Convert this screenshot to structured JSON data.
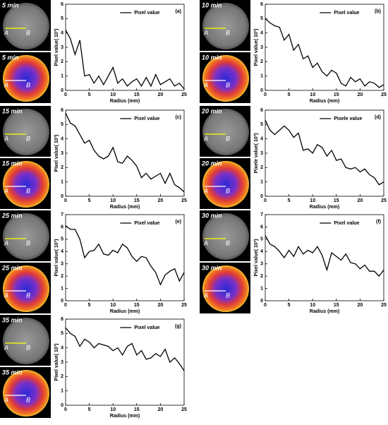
{
  "chart_data": [
    {
      "type": "line",
      "panel_label": "(a)",
      "time_label": "5 min",
      "point_labels": [
        "A",
        "B"
      ],
      "xlabel": "Radius (mm)",
      "ylabel": "Pixel value( 10³)",
      "x": [
        0,
        1,
        2,
        3,
        4,
        5,
        6,
        7,
        8,
        9,
        10,
        11,
        12,
        13,
        14,
        15,
        16,
        17,
        18,
        19,
        20,
        21,
        22,
        23,
        24,
        25
      ],
      "series": [
        {
          "name": "Pixel value",
          "color": "#000000",
          "values": [
            4.2,
            3.6,
            2.5,
            3.5,
            1.0,
            1.1,
            0.5,
            1.0,
            0.4,
            1.0,
            1.6,
            0.5,
            0.8,
            0.3,
            0.6,
            0.8,
            0.3,
            0.9,
            0.3,
            1.1,
            0.4,
            0.6,
            0.8,
            0.3,
            0.5,
            0.1
          ]
        }
      ],
      "xlim": [
        0,
        25
      ],
      "ylim": [
        0,
        6
      ],
      "xticks": [
        0,
        5,
        10,
        15,
        20,
        25
      ],
      "yticks": [
        0,
        1,
        2,
        3,
        4,
        5,
        6
      ]
    },
    {
      "type": "line",
      "panel_label": "(b)",
      "time_label": "10 min",
      "point_labels": [
        "A",
        "B"
      ],
      "xlabel": "Radius (mm)",
      "ylabel": "Pixel value( 10³)",
      "x": [
        0,
        1,
        2,
        3,
        4,
        5,
        6,
        7,
        8,
        9,
        10,
        11,
        12,
        13,
        14,
        15,
        16,
        17,
        18,
        19,
        20,
        21,
        22,
        23,
        24,
        25
      ],
      "series": [
        {
          "name": "Pixel value",
          "color": "#000000",
          "values": [
            5.0,
            4.7,
            4.5,
            4.4,
            3.5,
            3.9,
            2.8,
            3.2,
            2.2,
            2.4,
            1.6,
            1.9,
            1.3,
            1.0,
            1.4,
            1.2,
            0.5,
            0.3,
            0.9,
            0.6,
            0.8,
            0.3,
            0.6,
            0.5,
            0.2,
            0.4
          ]
        }
      ],
      "xlim": [
        0,
        25
      ],
      "ylim": [
        0,
        6
      ],
      "xticks": [
        0,
        5,
        10,
        15,
        20,
        25
      ],
      "yticks": [
        0,
        1,
        2,
        3,
        4,
        5,
        6
      ]
    },
    {
      "type": "line",
      "panel_label": "(c)",
      "time_label": "15 min",
      "point_labels": [
        "A",
        "B"
      ],
      "xlabel": "Radius (mm)",
      "ylabel": "Pixel value( 10³)",
      "x": [
        0,
        1,
        2,
        3,
        4,
        5,
        6,
        7,
        8,
        9,
        10,
        11,
        12,
        13,
        14,
        15,
        16,
        17,
        18,
        19,
        20,
        21,
        22,
        23,
        24,
        25
      ],
      "series": [
        {
          "name": "Pixel value",
          "color": "#000000",
          "values": [
            5.8,
            5.1,
            4.9,
            4.3,
            3.7,
            3.9,
            3.2,
            2.8,
            2.6,
            2.8,
            3.4,
            2.4,
            2.3,
            2.8,
            2.5,
            2.1,
            1.3,
            1.6,
            1.2,
            1.4,
            1.6,
            0.9,
            1.6,
            0.8,
            0.6,
            0.3
          ]
        }
      ],
      "xlim": [
        0,
        25
      ],
      "ylim": [
        0,
        6
      ],
      "xticks": [
        0,
        5,
        10,
        15,
        20,
        25
      ],
      "yticks": [
        0,
        1,
        2,
        3,
        4,
        5,
        6
      ]
    },
    {
      "type": "line",
      "panel_label": "(d)",
      "time_label": "20 min",
      "point_labels": [
        "A",
        "B"
      ],
      "xlabel": "Radius (mm)",
      "ylabel": "Pixele value( 10³)",
      "x": [
        0,
        1,
        2,
        3,
        4,
        5,
        6,
        7,
        8,
        9,
        10,
        11,
        12,
        13,
        14,
        15,
        16,
        17,
        18,
        19,
        20,
        21,
        22,
        23,
        24,
        25
      ],
      "series": [
        {
          "name": "Pixele value",
          "color": "#000000",
          "values": [
            5.3,
            4.6,
            4.3,
            4.6,
            4.9,
            4.6,
            4.1,
            4.4,
            3.2,
            3.3,
            3.0,
            3.6,
            3.4,
            2.8,
            3.2,
            2.5,
            2.6,
            2.0,
            1.9,
            2.0,
            1.7,
            1.9,
            1.5,
            1.3,
            0.8,
            1.0
          ]
        }
      ],
      "xlim": [
        0,
        25
      ],
      "ylim": [
        0,
        6
      ],
      "xticks": [
        0,
        5,
        10,
        15,
        20,
        25
      ],
      "yticks": [
        0,
        1,
        2,
        3,
        4,
        5,
        6
      ]
    },
    {
      "type": "line",
      "panel_label": "(e)",
      "time_label": "25 min",
      "point_labels": [
        "A",
        "B"
      ],
      "xlabel": "Radius (mm)",
      "ylabel": "Pixel value( 10³)",
      "x": [
        0,
        1,
        2,
        3,
        4,
        5,
        6,
        7,
        8,
        9,
        10,
        11,
        12,
        13,
        14,
        15,
        16,
        17,
        18,
        19,
        20,
        21,
        22,
        23,
        24,
        25
      ],
      "series": [
        {
          "name": "Pixel value",
          "color": "#000000",
          "values": [
            6.1,
            5.8,
            5.8,
            5.0,
            3.5,
            4.0,
            4.1,
            4.6,
            3.8,
            3.7,
            4.1,
            3.9,
            4.6,
            4.3,
            3.6,
            3.2,
            3.6,
            3.5,
            2.8,
            2.3,
            1.3,
            2.1,
            2.4,
            2.6,
            1.6,
            2.3
          ]
        }
      ],
      "xlim": [
        0,
        25
      ],
      "ylim": [
        0,
        7
      ],
      "xticks": [
        0,
        5,
        10,
        15,
        20,
        25
      ],
      "yticks": [
        0,
        1,
        2,
        3,
        4,
        5,
        6,
        7
      ]
    },
    {
      "type": "line",
      "panel_label": "(f)",
      "time_label": "30 min",
      "point_labels": [
        "A",
        "B"
      ],
      "xlabel": "Radius (mm)",
      "ylabel": "Pixel value( 10³)",
      "x": [
        0,
        1,
        2,
        3,
        4,
        5,
        6,
        7,
        8,
        9,
        10,
        11,
        12,
        13,
        14,
        15,
        16,
        17,
        18,
        19,
        20,
        21,
        22,
        23,
        24,
        25
      ],
      "series": [
        {
          "name": "Pixel value",
          "color": "#000000",
          "values": [
            5.3,
            4.6,
            4.4,
            4.0,
            3.5,
            4.1,
            3.6,
            4.4,
            3.8,
            4.1,
            3.9,
            4.4,
            3.7,
            2.5,
            3.9,
            3.6,
            3.3,
            3.8,
            3.1,
            3.0,
            2.6,
            2.9,
            2.4,
            2.4,
            2.0,
            2.5
          ]
        }
      ],
      "xlim": [
        0,
        25
      ],
      "ylim": [
        0,
        7
      ],
      "xticks": [
        0,
        5,
        10,
        15,
        20,
        25
      ],
      "yticks": [
        0,
        1,
        2,
        3,
        4,
        5,
        6,
        7
      ]
    },
    {
      "type": "line",
      "panel_label": "(g)",
      "time_label": "35 min",
      "point_labels": [
        "A",
        "B"
      ],
      "xlabel": "Radius (mm)",
      "ylabel": "Pixel value( 10³)",
      "x": [
        0,
        1,
        2,
        3,
        4,
        5,
        6,
        7,
        8,
        9,
        10,
        11,
        12,
        13,
        14,
        15,
        16,
        17,
        18,
        19,
        20,
        21,
        22,
        23,
        24,
        25
      ],
      "series": [
        {
          "name": "Pixel value",
          "color": "#000000",
          "values": [
            5.4,
            5.0,
            4.8,
            4.1,
            4.6,
            4.4,
            4.0,
            4.3,
            4.2,
            4.1,
            3.8,
            4.0,
            3.5,
            4.1,
            4.3,
            3.5,
            3.8,
            3.2,
            3.3,
            3.6,
            3.4,
            3.9,
            3.0,
            3.3,
            2.9,
            2.4
          ]
        }
      ],
      "xlim": [
        0,
        25
      ],
      "ylim": [
        0,
        6
      ],
      "xticks": [
        0,
        5,
        10,
        15,
        20,
        25
      ],
      "yticks": [
        0,
        1,
        2,
        3,
        4,
        5,
        6
      ]
    }
  ]
}
